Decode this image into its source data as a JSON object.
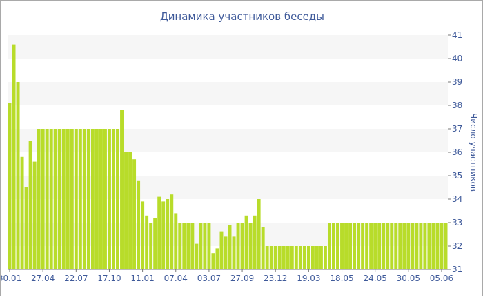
{
  "chart_data": {
    "type": "bar",
    "title": "Динамика участников беседы",
    "ylabel": "Число участников",
    "xlabel": "",
    "ylim": [
      31,
      41
    ],
    "y_ticks": [
      31,
      32,
      33,
      34,
      35,
      36,
      37,
      38,
      39,
      40,
      41
    ],
    "y_axis_side": "right",
    "grid": "horizontal bands",
    "x_tick_labels": [
      "30.01",
      "27.04",
      "22.07",
      "17.10",
      "11.01",
      "07.04",
      "03.07",
      "27.09",
      "23.12",
      "19.03",
      "18.05",
      "24.05",
      "30.05",
      "05.06"
    ],
    "x_tick_bar_index": [
      0,
      8,
      16,
      24,
      32,
      40,
      48,
      56,
      64,
      72,
      80,
      88,
      96,
      104
    ],
    "colors": {
      "bar": "#b8dc2a",
      "band": "#f6f6f6",
      "text": "#3f5a9a",
      "axis": "#777777",
      "border": "#a9a9a9"
    },
    "values": [
      38.1,
      40.6,
      39.0,
      35.8,
      34.5,
      36.5,
      35.6,
      37.0,
      37.0,
      37.0,
      37.0,
      37.0,
      37.0,
      37.0,
      37.0,
      37.0,
      37.0,
      37.0,
      37.0,
      37.0,
      37.0,
      37.0,
      37.0,
      37.0,
      37.0,
      37.0,
      37.0,
      37.8,
      36.0,
      36.0,
      35.7,
      34.8,
      33.9,
      33.3,
      33.0,
      33.2,
      34.1,
      33.9,
      34.0,
      34.2,
      33.4,
      33.0,
      33.0,
      33.0,
      33.0,
      32.1,
      33.0,
      33.0,
      33.0,
      31.7,
      31.9,
      32.6,
      32.4,
      32.9,
      32.4,
      33.0,
      33.0,
      33.3,
      33.0,
      33.3,
      34.0,
      32.8,
      32.0,
      32.0,
      32.0,
      32.0,
      32.0,
      32.0,
      32.0,
      32.0,
      32.0,
      32.0,
      32.0,
      32.0,
      32.0,
      32.0,
      32.0,
      33.0,
      33.0,
      33.0,
      33.0,
      33.0,
      33.0,
      33.0,
      33.0,
      33.0,
      33.0,
      33.0,
      33.0,
      33.0,
      33.0,
      33.0,
      33.0,
      33.0,
      33.0,
      33.0,
      33.0,
      33.0,
      33.0,
      33.0,
      33.0,
      33.0,
      33.0,
      33.0,
      33.0,
      33.0
    ]
  }
}
